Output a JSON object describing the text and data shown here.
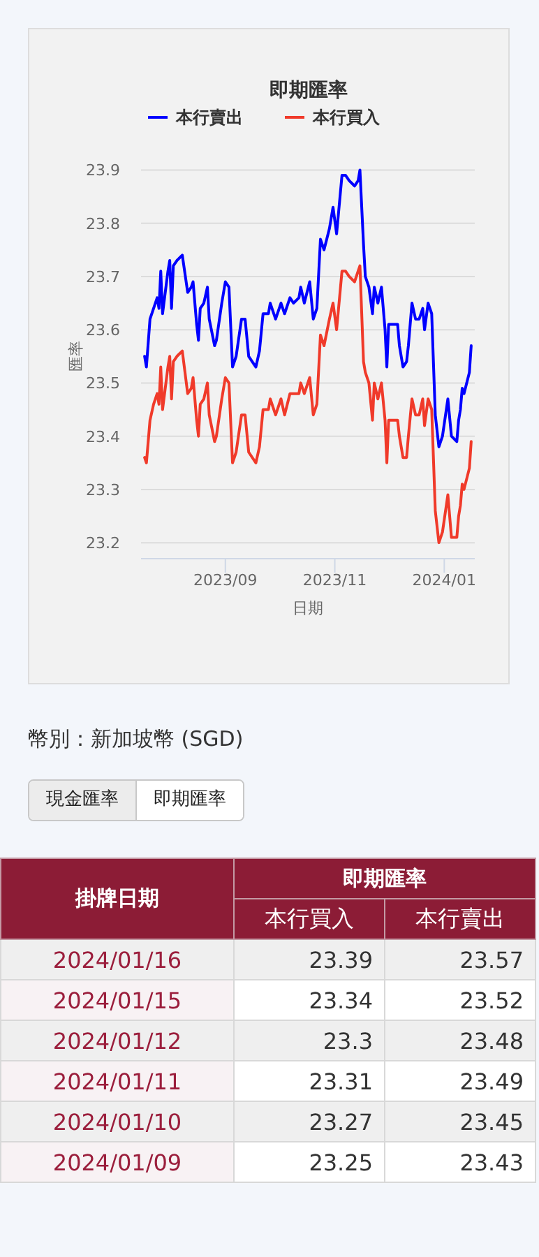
{
  "chart_data": [
    {
      "type": "line",
      "title": "即期匯率",
      "xlabel": "日期",
      "ylabel": "匯率",
      "legend": "top",
      "grid": "y",
      "xlim": [
        "2023-07-16",
        "2024-01-18"
      ],
      "ylim": [
        23.17,
        23.9
      ],
      "xticks": [
        {
          "value": "2023-09-01",
          "label": "2023/09"
        },
        {
          "value": "2023-11-01",
          "label": "2023/11"
        },
        {
          "value": "2024-01-01",
          "label": "2024/01"
        }
      ],
      "yticks": [
        23.2,
        23.3,
        23.4,
        23.5,
        23.6,
        23.7,
        23.8,
        23.9
      ],
      "x": [
        "2023-07-18",
        "2023-07-19",
        "2023-07-21",
        "2023-07-23",
        "2023-07-25",
        "2023-07-26",
        "2023-07-27",
        "2023-07-28",
        "2023-07-31",
        "2023-08-01",
        "2023-08-02",
        "2023-08-03",
        "2023-08-05",
        "2023-08-08",
        "2023-08-11",
        "2023-08-13",
        "2023-08-14",
        "2023-08-16",
        "2023-08-17",
        "2023-08-18",
        "2023-08-20",
        "2023-08-22",
        "2023-08-23",
        "2023-08-26",
        "2023-08-27",
        "2023-08-30",
        "2023-09-01",
        "2023-09-03",
        "2023-09-05",
        "2023-09-07",
        "2023-09-10",
        "2023-09-12",
        "2023-09-14",
        "2023-09-18",
        "2023-09-20",
        "2023-09-22",
        "2023-09-25",
        "2023-09-26",
        "2023-09-29",
        "2023-10-02",
        "2023-10-04",
        "2023-10-07",
        "2023-10-09",
        "2023-10-12",
        "2023-10-13",
        "2023-10-15",
        "2023-10-18",
        "2023-10-20",
        "2023-10-22",
        "2023-10-24",
        "2023-10-26",
        "2023-10-29",
        "2023-10-31",
        "2023-11-02",
        "2023-11-05",
        "2023-11-07",
        "2023-11-09",
        "2023-11-12",
        "2023-11-14",
        "2023-11-15",
        "2023-11-17",
        "2023-11-18",
        "2023-11-20",
        "2023-11-22",
        "2023-11-23",
        "2023-11-25",
        "2023-11-27",
        "2023-11-29",
        "2023-11-30",
        "2023-12-01",
        "2023-12-04",
        "2023-12-06",
        "2023-12-07",
        "2023-12-09",
        "2023-12-11",
        "2023-12-12",
        "2023-12-14",
        "2023-12-16",
        "2023-12-18",
        "2023-12-20",
        "2023-12-21",
        "2023-12-23",
        "2023-12-25",
        "2023-12-27",
        "2023-12-29",
        "2023-12-31",
        "2024-01-03",
        "2024-01-05",
        "2024-01-08",
        "2024-01-09",
        "2024-01-10",
        "2024-01-11",
        "2024-01-12",
        "2024-01-15",
        "2024-01-16"
      ],
      "series": [
        {
          "name": "本行賣出",
          "color": "#0000ff",
          "values": [
            23.55,
            23.53,
            23.62,
            23.64,
            23.66,
            23.64,
            23.71,
            23.63,
            23.71,
            23.73,
            23.64,
            23.72,
            23.73,
            23.74,
            23.67,
            23.68,
            23.69,
            23.61,
            23.58,
            23.64,
            23.65,
            23.68,
            23.62,
            23.57,
            23.58,
            23.65,
            23.69,
            23.68,
            23.53,
            23.55,
            23.62,
            23.62,
            23.55,
            23.53,
            23.56,
            23.63,
            23.63,
            23.65,
            23.62,
            23.65,
            23.63,
            23.66,
            23.65,
            23.66,
            23.68,
            23.65,
            23.69,
            23.62,
            23.64,
            23.77,
            23.75,
            23.79,
            23.83,
            23.78,
            23.89,
            23.89,
            23.88,
            23.87,
            23.88,
            23.9,
            23.76,
            23.7,
            23.68,
            23.63,
            23.68,
            23.65,
            23.68,
            23.6,
            23.53,
            23.61,
            23.61,
            23.61,
            23.57,
            23.53,
            23.54,
            23.57,
            23.65,
            23.62,
            23.62,
            23.64,
            23.6,
            23.65,
            23.63,
            23.44,
            23.38,
            23.4,
            23.47,
            23.4,
            23.39,
            23.43,
            23.45,
            23.49,
            23.48,
            23.52,
            23.57
          ]
        },
        {
          "name": "本行買入",
          "color": "#f03a2a",
          "values": [
            23.36,
            23.35,
            23.43,
            23.46,
            23.48,
            23.46,
            23.53,
            23.45,
            23.53,
            23.55,
            23.47,
            23.54,
            23.55,
            23.56,
            23.48,
            23.49,
            23.51,
            23.43,
            23.4,
            23.46,
            23.47,
            23.5,
            23.44,
            23.39,
            23.4,
            23.47,
            23.51,
            23.5,
            23.35,
            23.37,
            23.44,
            23.44,
            23.37,
            23.35,
            23.38,
            23.45,
            23.45,
            23.47,
            23.44,
            23.47,
            23.44,
            23.48,
            23.48,
            23.48,
            23.5,
            23.48,
            23.51,
            23.44,
            23.46,
            23.59,
            23.57,
            23.62,
            23.65,
            23.6,
            23.71,
            23.71,
            23.7,
            23.69,
            23.71,
            23.72,
            23.54,
            23.52,
            23.5,
            23.43,
            23.5,
            23.47,
            23.5,
            23.43,
            23.35,
            23.43,
            23.43,
            23.43,
            23.4,
            23.36,
            23.36,
            23.4,
            23.47,
            23.44,
            23.44,
            23.47,
            23.42,
            23.47,
            23.45,
            23.26,
            23.2,
            23.22,
            23.29,
            23.21,
            23.21,
            23.25,
            23.27,
            23.31,
            23.3,
            23.34,
            23.39
          ]
        }
      ]
    },
    {
      "type": "other",
      "annotations": [
        "幣別：新加坡幣 (SGD)",
        "現金匯率",
        "即期匯率",
        "掛牌日期",
        "即期匯率",
        "本行買入",
        "本行賣出",
        "2024/01/16",
        "23.39",
        "23.57",
        "2024/01/15",
        "23.34",
        "23.52",
        "2024/01/12",
        "23.3",
        "23.48",
        "2024/01/11",
        "23.31",
        "23.49",
        "2024/01/10",
        "23.27",
        "23.45",
        "2024/01/09",
        "23.25",
        "23.43"
      ]
    }
  ]
}
